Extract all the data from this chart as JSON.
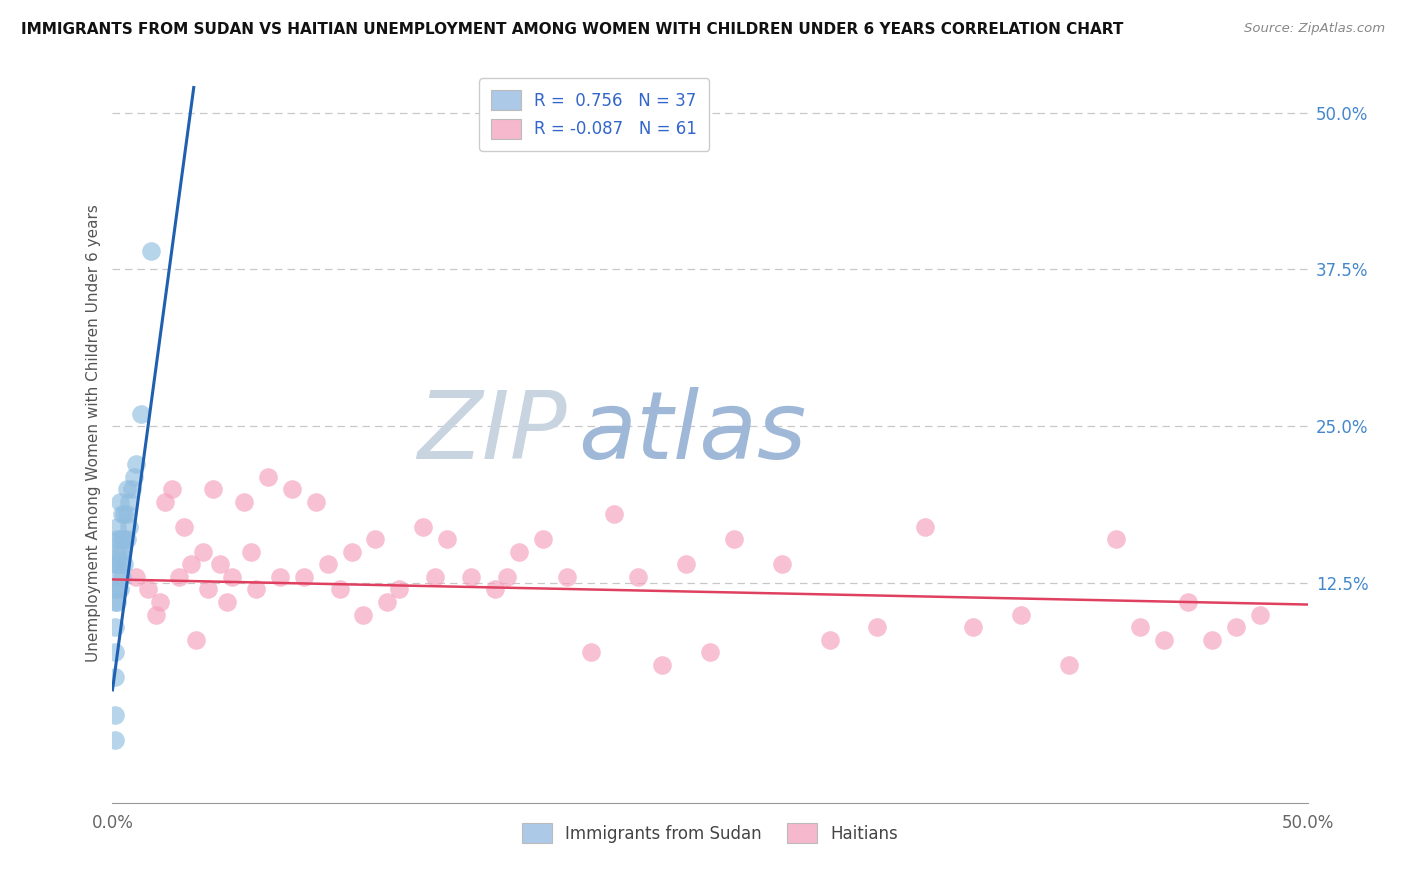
{
  "title": "IMMIGRANTS FROM SUDAN VS HAITIAN UNEMPLOYMENT AMONG WOMEN WITH CHILDREN UNDER 6 YEARS CORRELATION CHART",
  "source": "Source: ZipAtlas.com",
  "ylabel": "Unemployment Among Women with Children Under 6 years",
  "xlim": [
    0.0,
    0.5
  ],
  "ylim": [
    -0.05,
    0.54
  ],
  "x_tick_labels": [
    "0.0%",
    "50.0%"
  ],
  "x_tick_vals": [
    0.0,
    0.5
  ],
  "y_tick_labels_right": [
    "50.0%",
    "37.5%",
    "25.0%",
    "12.5%"
  ],
  "y_tick_values_right": [
    0.5,
    0.375,
    0.25,
    0.125
  ],
  "legend_r1": "R =  0.756   N = 37",
  "legend_r2": "R = -0.087   N = 61",
  "legend_color1": "#adc9e8",
  "legend_color2": "#f5b8cc",
  "sudan_scatter_color": "#90bde0",
  "haitian_scatter_color": "#f5a0bc",
  "sudan_line_color": "#2060b0",
  "haitian_line_color": "#e04060",
  "watermark_zip": "ZIP",
  "watermark_atlas": "atlas",
  "watermark_zip_color": "#c8d4e0",
  "watermark_atlas_color": "#a0b8d8",
  "background_color": "#ffffff",
  "grid_color": "#c8c8c8",
  "sudan_x": [
    0.001,
    0.001,
    0.001,
    0.001,
    0.001,
    0.001,
    0.001,
    0.001,
    0.002,
    0.002,
    0.002,
    0.002,
    0.002,
    0.002,
    0.002,
    0.003,
    0.003,
    0.003,
    0.003,
    0.003,
    0.004,
    0.004,
    0.004,
    0.004,
    0.005,
    0.005,
    0.005,
    0.006,
    0.006,
    0.006,
    0.007,
    0.007,
    0.008,
    0.009,
    0.01,
    0.012,
    0.016
  ],
  "sudan_y": [
    0.0,
    0.02,
    0.05,
    0.07,
    0.09,
    0.11,
    0.12,
    0.14,
    0.11,
    0.12,
    0.13,
    0.14,
    0.15,
    0.16,
    0.17,
    0.12,
    0.14,
    0.15,
    0.16,
    0.19,
    0.13,
    0.15,
    0.16,
    0.18,
    0.14,
    0.16,
    0.18,
    0.16,
    0.18,
    0.2,
    0.17,
    0.19,
    0.2,
    0.21,
    0.22,
    0.26,
    0.39
  ],
  "haitian_x": [
    0.01,
    0.015,
    0.018,
    0.02,
    0.022,
    0.025,
    0.028,
    0.03,
    0.033,
    0.035,
    0.038,
    0.04,
    0.042,
    0.045,
    0.048,
    0.05,
    0.055,
    0.058,
    0.06,
    0.065,
    0.07,
    0.075,
    0.08,
    0.085,
    0.09,
    0.095,
    0.1,
    0.105,
    0.11,
    0.115,
    0.12,
    0.13,
    0.135,
    0.14,
    0.15,
    0.16,
    0.165,
    0.17,
    0.18,
    0.19,
    0.2,
    0.21,
    0.22,
    0.23,
    0.24,
    0.25,
    0.26,
    0.28,
    0.3,
    0.32,
    0.34,
    0.36,
    0.38,
    0.4,
    0.42,
    0.43,
    0.44,
    0.45,
    0.46,
    0.47,
    0.48
  ],
  "haitian_y": [
    0.13,
    0.12,
    0.1,
    0.11,
    0.19,
    0.2,
    0.13,
    0.17,
    0.14,
    0.08,
    0.15,
    0.12,
    0.2,
    0.14,
    0.11,
    0.13,
    0.19,
    0.15,
    0.12,
    0.21,
    0.13,
    0.2,
    0.13,
    0.19,
    0.14,
    0.12,
    0.15,
    0.1,
    0.16,
    0.11,
    0.12,
    0.17,
    0.13,
    0.16,
    0.13,
    0.12,
    0.13,
    0.15,
    0.16,
    0.13,
    0.07,
    0.18,
    0.13,
    0.06,
    0.14,
    0.07,
    0.16,
    0.14,
    0.08,
    0.09,
    0.17,
    0.09,
    0.1,
    0.06,
    0.16,
    0.09,
    0.08,
    0.11,
    0.08,
    0.09,
    0.1
  ],
  "sudan_line_x": [
    0.0,
    0.034
  ],
  "sudan_line_y": [
    0.04,
    0.52
  ],
  "haitian_line_x": [
    0.0,
    0.5
  ],
  "haitian_line_y": [
    0.128,
    0.108
  ]
}
